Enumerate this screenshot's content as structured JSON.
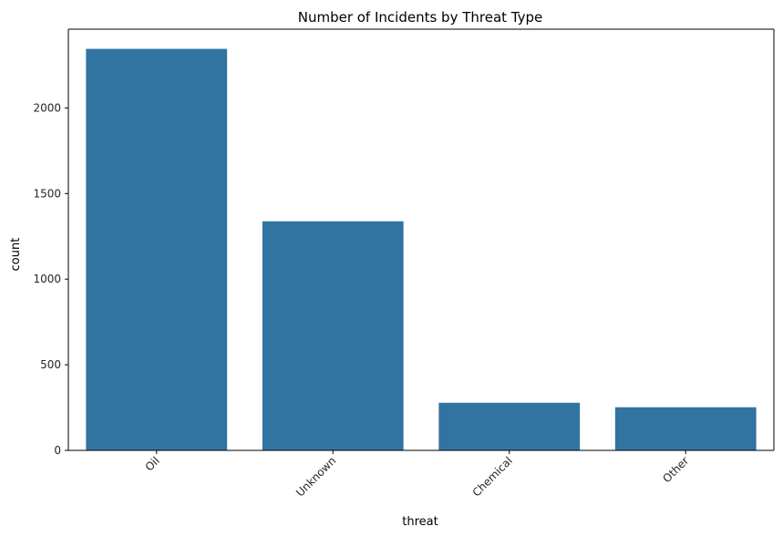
{
  "chart_data": {
    "type": "bar",
    "title": "Number of Incidents by Threat Type",
    "xlabel": "threat",
    "ylabel": "count",
    "categories": [
      "Oil",
      "Unknown",
      "Chemical",
      "Other"
    ],
    "values": [
      2345,
      1338,
      278,
      252
    ],
    "ylim": [
      0,
      2460
    ],
    "yticks": [
      0,
      500,
      1000,
      1500,
      2000
    ],
    "grid": false,
    "x_tick_rotation_deg": 45,
    "colors": {
      "bar": "#3274a1"
    }
  }
}
